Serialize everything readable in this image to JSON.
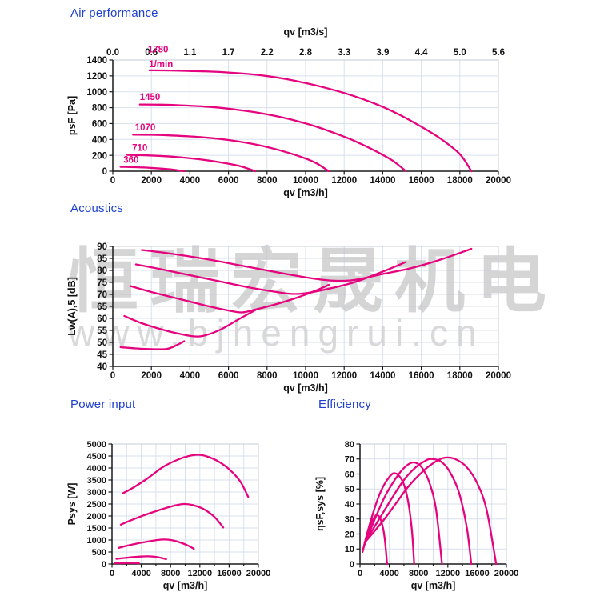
{
  "colors": {
    "curve": "#e5047e",
    "title": "#1e40cf",
    "grid": "#d8e0ee",
    "border": "#c6cdda",
    "axis": "#1a1a1a",
    "tick_text": "#111111",
    "watermark_cn": "#c4c4c4",
    "watermark_url": "#d0d0d0"
  },
  "watermark": {
    "line1": "恒瑞宏晟机电",
    "line2": "www.bjhengrui.cn"
  },
  "chart_data": [
    {
      "id": "air",
      "type": "line",
      "title": "Air performance",
      "xlabel": "qv [m3/h]",
      "ylabel": "psF [Pa]",
      "xlim": [
        0,
        20000
      ],
      "ylim": [
        0,
        1400
      ],
      "x_major": 2000,
      "x_minor": null,
      "y_major": 200,
      "top_axis": {
        "title": "qv [m3/s]",
        "ticks": [
          "0.0",
          "0.6",
          "1.1",
          "1.7",
          "2.2",
          "2.8",
          "3.3",
          "3.9",
          "4.4",
          "5.0",
          "5.6"
        ]
      },
      "series": [
        {
          "name": "1780",
          "points": [
            [
              1900,
              1270
            ],
            [
              3000,
              1268
            ],
            [
              4000,
              1262
            ],
            [
              5000,
              1255
            ],
            [
              6000,
              1243
            ],
            [
              7000,
              1225
            ],
            [
              8000,
              1198
            ],
            [
              9000,
              1160
            ],
            [
              10000,
              1110
            ],
            [
              11000,
              1052
            ],
            [
              12000,
              985
            ],
            [
              13000,
              905
            ],
            [
              14000,
              810
            ],
            [
              15000,
              695
            ],
            [
              16000,
              560
            ],
            [
              17000,
              410
            ],
            [
              18000,
              215
            ],
            [
              18600,
              0
            ]
          ]
        },
        {
          "name": "1450",
          "points": [
            [
              1400,
              840
            ],
            [
              2500,
              838
            ],
            [
              3500,
              830
            ],
            [
              4500,
              818
            ],
            [
              5500,
              800
            ],
            [
              6500,
              772
            ],
            [
              7500,
              738
            ],
            [
              8500,
              692
            ],
            [
              9500,
              635
            ],
            [
              10500,
              565
            ],
            [
              11500,
              480
            ],
            [
              12500,
              385
            ],
            [
              13500,
              270
            ],
            [
              14500,
              135
            ],
            [
              15200,
              0
            ]
          ]
        },
        {
          "name": "1070",
          "points": [
            [
              1050,
              460
            ],
            [
              2000,
              458
            ],
            [
              3000,
              450
            ],
            [
              4000,
              438
            ],
            [
              5000,
              420
            ],
            [
              6000,
              393
            ],
            [
              7000,
              355
            ],
            [
              8000,
              305
            ],
            [
              9000,
              240
            ],
            [
              10000,
              160
            ],
            [
              10600,
              95
            ],
            [
              11200,
              0
            ]
          ]
        },
        {
          "name": "710",
          "points": [
            [
              750,
              205
            ],
            [
              1500,
              202
            ],
            [
              2500,
              192
            ],
            [
              3500,
              175
            ],
            [
              4500,
              150
            ],
            [
              5500,
              115
            ],
            [
              6500,
              70
            ],
            [
              7400,
              0
            ]
          ]
        },
        {
          "name": "360",
          "points": [
            [
              400,
              55
            ],
            [
              1200,
              50
            ],
            [
              2000,
              41
            ],
            [
              2800,
              27
            ],
            [
              3300,
              14
            ],
            [
              3700,
              0
            ]
          ]
        }
      ],
      "labels": [
        {
          "text": "1780",
          "x": 2350,
          "y": 1495,
          "anchor": "middle"
        },
        {
          "text": "1/min",
          "x": 2500,
          "y": 1310,
          "anchor": "middle"
        },
        {
          "text": "1450",
          "x": 1400,
          "y": 895,
          "anchor": "start"
        },
        {
          "text": "1070",
          "x": 1150,
          "y": 515,
          "anchor": "start"
        },
        {
          "text": "710",
          "x": 1000,
          "y": 258,
          "anchor": "start"
        },
        {
          "text": "360",
          "x": 550,
          "y": 108,
          "anchor": "start"
        }
      ]
    },
    {
      "id": "acoustics",
      "type": "line",
      "title": "Acoustics",
      "xlabel": "qv [m3/h]",
      "ylabel": "Lw(A),5 [dB]",
      "xlim": [
        0,
        20000
      ],
      "ylim": [
        40,
        90
      ],
      "x_major": 2000,
      "x_minor": null,
      "y_major": 5,
      "has_watermark": true,
      "series": [
        {
          "name": "1780",
          "points": [
            [
              1500,
              88.5
            ],
            [
              3000,
              87
            ],
            [
              5000,
              84.5
            ],
            [
              7000,
              81.5
            ],
            [
              9000,
              78.5
            ],
            [
              10500,
              76.5
            ],
            [
              11500,
              75.7
            ],
            [
              12500,
              76
            ],
            [
              14000,
              78.5
            ],
            [
              15500,
              81
            ],
            [
              17000,
              84.5
            ],
            [
              18600,
              89
            ]
          ]
        },
        {
          "name": "1450",
          "points": [
            [
              1200,
              82.5
            ],
            [
              2500,
              80.5
            ],
            [
              4000,
              78
            ],
            [
              5500,
              75.5
            ],
            [
              7000,
              73
            ],
            [
              8500,
              71
            ],
            [
              9300,
              70.2
            ],
            [
              10000,
              70.5
            ],
            [
              11000,
              72
            ],
            [
              12500,
              75
            ],
            [
              14000,
              79.5
            ],
            [
              15200,
              83.5
            ]
          ]
        },
        {
          "name": "1070",
          "points": [
            [
              900,
              73.5
            ],
            [
              2000,
              71
            ],
            [
              3500,
              68
            ],
            [
              5000,
              65
            ],
            [
              6000,
              63.3
            ],
            [
              6700,
              62.5
            ],
            [
              7400,
              63.7
            ],
            [
              8500,
              66
            ],
            [
              9500,
              68.5
            ],
            [
              10500,
              71.5
            ],
            [
              11200,
              74
            ]
          ]
        },
        {
          "name": "710",
          "points": [
            [
              600,
              61
            ],
            [
              1500,
              58
            ],
            [
              2500,
              55.5
            ],
            [
              3500,
              53.5
            ],
            [
              4500,
              52.5
            ],
            [
              5500,
              55
            ],
            [
              6500,
              59.5
            ],
            [
              7400,
              63.5
            ]
          ]
        },
        {
          "name": "360",
          "points": [
            [
              400,
              48
            ],
            [
              1200,
              47.5
            ],
            [
              2000,
              47.2
            ],
            [
              2800,
              47.3
            ],
            [
              3300,
              48.8
            ],
            [
              3700,
              50.5
            ]
          ]
        }
      ],
      "labels": []
    },
    {
      "id": "power",
      "type": "line",
      "title": "Power input",
      "xlabel": "qv [m3/h]",
      "ylabel": "Psys [W]",
      "xlim": [
        0,
        20000
      ],
      "ylim": [
        0,
        5000
      ],
      "x_major": 4000,
      "x_minor": 2000,
      "y_major": 500,
      "series": [
        {
          "name": "1780",
          "points": [
            [
              1500,
              2950
            ],
            [
              3000,
              3200
            ],
            [
              5000,
              3600
            ],
            [
              7000,
              4050
            ],
            [
              9000,
              4350
            ],
            [
              10500,
              4500
            ],
            [
              11800,
              4550
            ],
            [
              13000,
              4480
            ],
            [
              14500,
              4280
            ],
            [
              16000,
              3950
            ],
            [
              17500,
              3450
            ],
            [
              18600,
              2800
            ]
          ]
        },
        {
          "name": "1450",
          "points": [
            [
              1200,
              1640
            ],
            [
              2500,
              1810
            ],
            [
              4000,
              1990
            ],
            [
              5500,
              2150
            ],
            [
              7000,
              2300
            ],
            [
              8500,
              2430
            ],
            [
              9800,
              2500
            ],
            [
              11000,
              2460
            ],
            [
              12500,
              2290
            ],
            [
              14000,
              1960
            ],
            [
              15200,
              1520
            ]
          ]
        },
        {
          "name": "1070",
          "points": [
            [
              900,
              670
            ],
            [
              2000,
              760
            ],
            [
              3500,
              860
            ],
            [
              5000,
              940
            ],
            [
              6200,
              1000
            ],
            [
              7200,
              1020
            ],
            [
              8200,
              990
            ],
            [
              9500,
              880
            ],
            [
              10500,
              750
            ],
            [
              11200,
              630
            ]
          ]
        },
        {
          "name": "710",
          "points": [
            [
              600,
              215
            ],
            [
              1800,
              255
            ],
            [
              3000,
              290
            ],
            [
              4200,
              315
            ],
            [
              5000,
              320
            ],
            [
              6000,
              295
            ],
            [
              7000,
              235
            ],
            [
              7400,
              200
            ]
          ]
        },
        {
          "name": "360",
          "points": [
            [
              400,
              30
            ],
            [
              1500,
              40
            ],
            [
              2500,
              42
            ],
            [
              3200,
              38
            ],
            [
              3700,
              30
            ]
          ]
        }
      ],
      "labels": []
    },
    {
      "id": "efficiency",
      "type": "line",
      "title": "Efficiency",
      "xlabel": "qv [m3/h]",
      "ylabel": "ηsF,sys [%]",
      "xlim": [
        0,
        20000
      ],
      "ylim": [
        0,
        80
      ],
      "x_major": 4000,
      "x_minor": 2000,
      "y_major": 10,
      "series": [
        {
          "name": "360",
          "points": [
            [
              350,
              8
            ],
            [
              700,
              15
            ],
            [
              1200,
              23
            ],
            [
              1700,
              29
            ],
            [
              2200,
              32.5
            ],
            [
              2700,
              31
            ],
            [
              3100,
              25
            ],
            [
              3400,
              16
            ],
            [
              3700,
              0
            ]
          ]
        },
        {
          "name": "710",
          "points": [
            [
              450,
              10
            ],
            [
              900,
              19
            ],
            [
              1600,
              31
            ],
            [
              2400,
              43
            ],
            [
              3200,
              52
            ],
            [
              4000,
              58
            ],
            [
              4600,
              60.5
            ],
            [
              5300,
              59
            ],
            [
              6000,
              53
            ],
            [
              6600,
              41
            ],
            [
              7100,
              22
            ],
            [
              7400,
              0
            ]
          ]
        },
        {
          "name": "1070",
          "points": [
            [
              550,
              12
            ],
            [
              1200,
              20
            ],
            [
              2200,
              32
            ],
            [
              3400,
              45
            ],
            [
              4600,
              55
            ],
            [
              5800,
              63
            ],
            [
              6800,
              67
            ],
            [
              7600,
              67.5
            ],
            [
              8500,
              64
            ],
            [
              9500,
              54
            ],
            [
              10400,
              36
            ],
            [
              11200,
              0
            ]
          ]
        },
        {
          "name": "1450",
          "points": [
            [
              650,
              14
            ],
            [
              1500,
              21
            ],
            [
              3000,
              33
            ],
            [
              4500,
              45
            ],
            [
              6000,
              56
            ],
            [
              7500,
              64
            ],
            [
              9000,
              69
            ],
            [
              9800,
              70
            ],
            [
              11000,
              68.5
            ],
            [
              12200,
              62
            ],
            [
              13500,
              48
            ],
            [
              14600,
              24
            ],
            [
              15200,
              0
            ]
          ]
        },
        {
          "name": "1780",
          "points": [
            [
              750,
              15
            ],
            [
              2000,
              22
            ],
            [
              3500,
              31
            ],
            [
              5000,
              41
            ],
            [
              6500,
              51
            ],
            [
              8000,
              59
            ],
            [
              9500,
              65.5
            ],
            [
              11000,
              70
            ],
            [
              11900,
              71
            ],
            [
              13000,
              70
            ],
            [
              14500,
              65
            ],
            [
              16000,
              54
            ],
            [
              17300,
              36
            ],
            [
              18600,
              0
            ]
          ]
        }
      ],
      "labels": []
    }
  ]
}
